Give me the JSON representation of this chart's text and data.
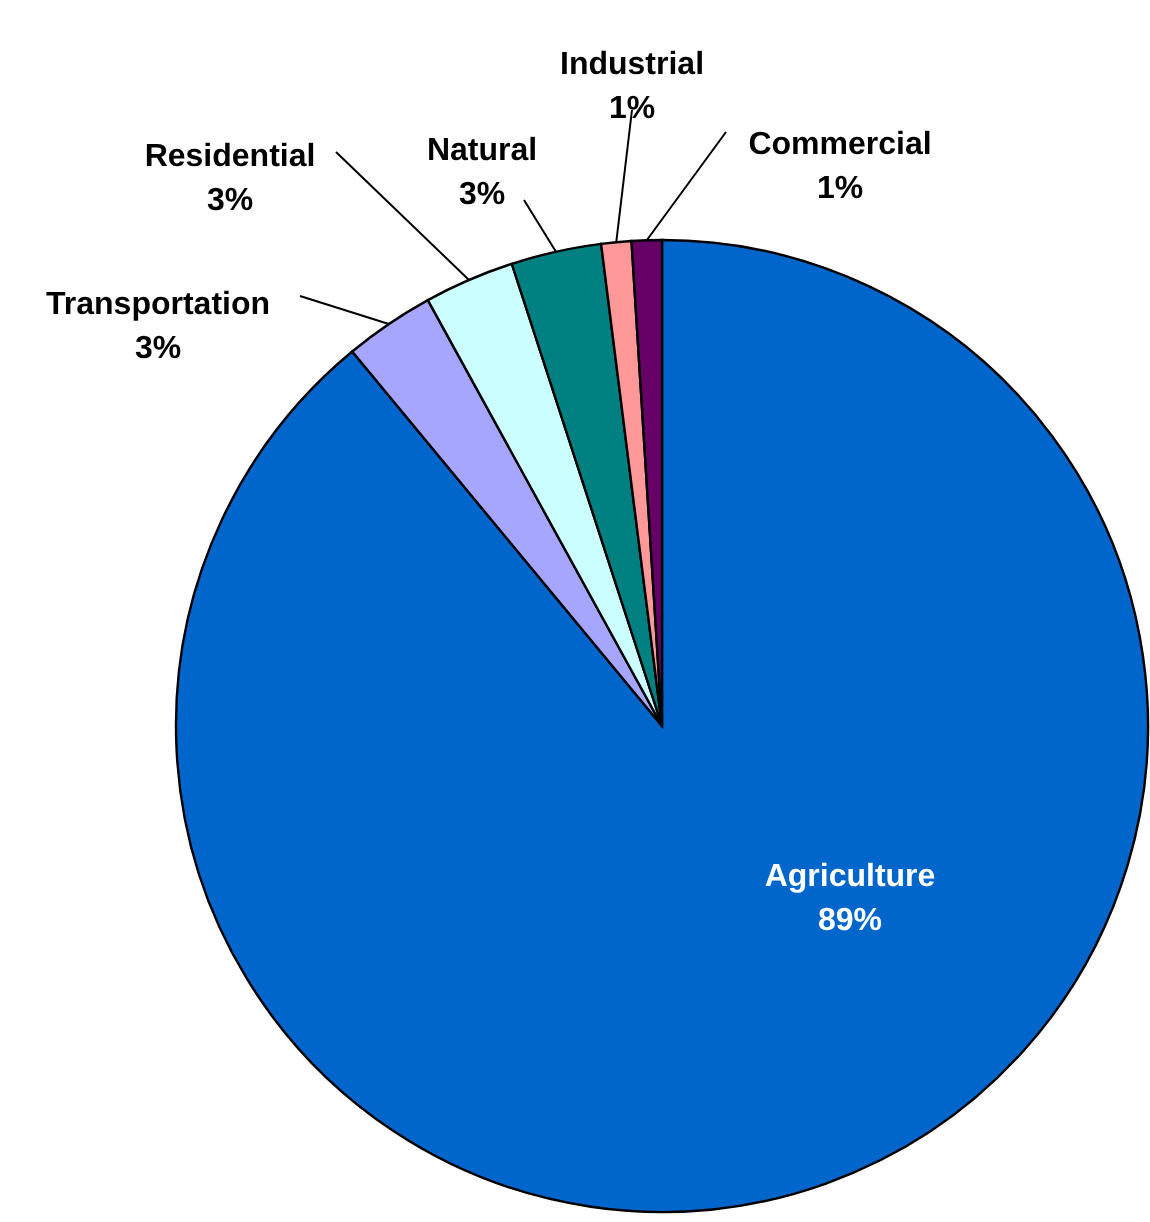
{
  "chart_data": {
    "type": "pie",
    "categories": [
      "Agriculture",
      "Transportation",
      "Residential",
      "Natural",
      "Industrial",
      "Commercial"
    ],
    "values": [
      89,
      3,
      3,
      3,
      1,
      1
    ],
    "colors": [
      "#0066cc",
      "#a6a6ff",
      "#ccffff",
      "#008080",
      "#ff9999",
      "#660066"
    ],
    "value_labels": [
      "89%",
      "3%",
      "3%",
      "3%",
      "1%",
      "1%"
    ]
  }
}
